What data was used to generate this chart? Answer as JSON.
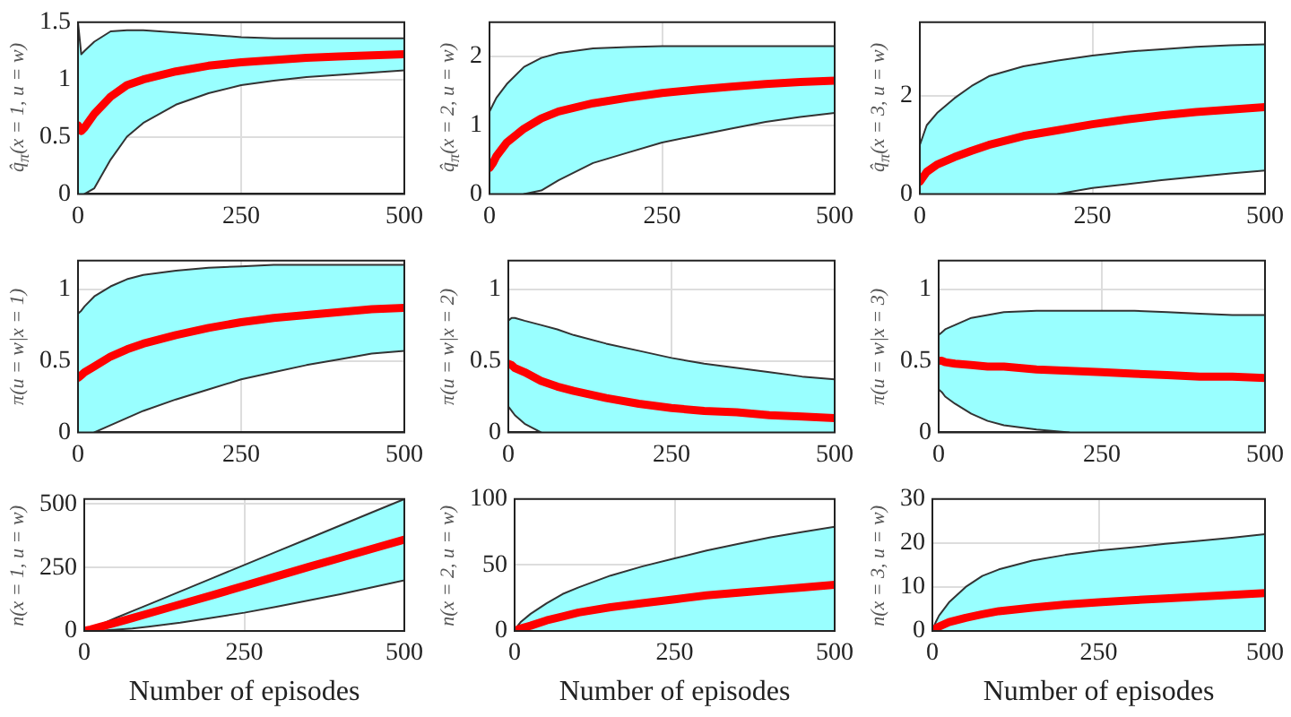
{
  "chart_data": [
    {
      "type": "line",
      "ylabel": "q̂$_{π}$(x = 1, u = w)",
      "x": [
        0,
        5,
        10,
        25,
        50,
        75,
        100,
        150,
        200,
        250,
        300,
        350,
        400,
        450,
        500
      ],
      "xlim": [
        0,
        500
      ],
      "xticks": [
        0,
        250,
        500
      ],
      "ylim": [
        0,
        1.5
      ],
      "yticks": [
        0,
        0.5,
        1,
        1.5
      ],
      "grid": true,
      "legend": false,
      "marker": "none",
      "line_style": "solid",
      "series": [
        {
          "color": "#ff0000",
          "values": [
            0.6,
            0.55,
            0.58,
            0.7,
            0.85,
            0.95,
            1.0,
            1.07,
            1.12,
            1.15,
            1.17,
            1.19,
            1.2,
            1.21,
            1.22
          ],
          "lower": [
            0,
            0,
            0,
            0.05,
            0.3,
            0.5,
            0.62,
            0.78,
            0.88,
            0.95,
            0.99,
            1.02,
            1.04,
            1.06,
            1.08
          ],
          "upper": [
            1.5,
            1.22,
            1.25,
            1.33,
            1.42,
            1.43,
            1.43,
            1.41,
            1.39,
            1.37,
            1.36,
            1.36,
            1.36,
            1.36,
            1.36
          ]
        },
        {
          "color": "#333333",
          "values": [
            1.5,
            1.22,
            1.25,
            1.33,
            1.42,
            1.43,
            1.43,
            1.41,
            1.39,
            1.37,
            1.36,
            1.36,
            1.36,
            1.36,
            1.36
          ]
        },
        {
          "color": "#333333",
          "values": [
            null,
            null,
            0,
            0.05,
            0.3,
            0.5,
            0.62,
            0.78,
            0.88,
            0.95,
            0.99,
            1.02,
            1.04,
            1.06,
            1.08
          ]
        }
      ]
    },
    {
      "type": "line",
      "ylabel": "q̂$_{π}$(x = 2, u = w)",
      "x": [
        0,
        5,
        10,
        25,
        50,
        75,
        100,
        150,
        200,
        250,
        300,
        350,
        400,
        450,
        500
      ],
      "xlim": [
        0,
        500
      ],
      "xticks": [
        0,
        250,
        500
      ],
      "ylim": [
        0,
        2.5
      ],
      "yticks": [
        0,
        1,
        2
      ],
      "grid": true,
      "legend": false,
      "marker": "none",
      "line_style": "solid",
      "series": [
        {
          "color": "#ff0000",
          "values": [
            0.38,
            0.45,
            0.55,
            0.75,
            0.95,
            1.1,
            1.2,
            1.32,
            1.4,
            1.47,
            1.52,
            1.56,
            1.6,
            1.63,
            1.65
          ],
          "lower": [
            0,
            0,
            0,
            0,
            0,
            0.05,
            0.2,
            0.45,
            0.6,
            0.75,
            0.85,
            0.95,
            1.05,
            1.12,
            1.18
          ],
          "upper": [
            1.2,
            1.3,
            1.4,
            1.6,
            1.85,
            1.98,
            2.05,
            2.12,
            2.14,
            2.15,
            2.15,
            2.15,
            2.15,
            2.15,
            2.15
          ]
        },
        {
          "color": "#333333",
          "values": [
            1.2,
            1.3,
            1.4,
            1.6,
            1.85,
            1.98,
            2.05,
            2.12,
            2.14,
            2.15,
            2.15,
            2.15,
            2.15,
            2.15,
            2.15
          ]
        },
        {
          "color": "#333333",
          "values": [
            null,
            null,
            null,
            null,
            0,
            0.05,
            0.2,
            0.45,
            0.6,
            0.75,
            0.85,
            0.95,
            1.05,
            1.12,
            1.18
          ]
        }
      ]
    },
    {
      "type": "line",
      "ylabel": "q̂$_{π}$(x = 3, u = w)",
      "x": [
        0,
        5,
        10,
        25,
        50,
        75,
        100,
        150,
        200,
        250,
        300,
        350,
        400,
        450,
        500
      ],
      "xlim": [
        0,
        500
      ],
      "xticks": [
        0,
        250,
        500
      ],
      "ylim": [
        0,
        3.5
      ],
      "yticks": [
        0,
        2
      ],
      "grid": true,
      "legend": false,
      "marker": "none",
      "line_style": "solid",
      "series": [
        {
          "color": "#ff0000",
          "values": [
            0.25,
            0.35,
            0.45,
            0.6,
            0.75,
            0.88,
            1.0,
            1.18,
            1.3,
            1.42,
            1.52,
            1.6,
            1.67,
            1.72,
            1.77
          ],
          "lower": [
            0,
            0,
            0,
            0,
            0,
            0,
            0,
            0,
            0,
            0.12,
            0.2,
            0.28,
            0.35,
            0.42,
            0.48
          ],
          "upper": [
            1.0,
            1.2,
            1.4,
            1.65,
            1.95,
            2.2,
            2.4,
            2.6,
            2.72,
            2.82,
            2.9,
            2.95,
            3.0,
            3.03,
            3.05
          ]
        },
        {
          "color": "#333333",
          "values": [
            1.0,
            1.2,
            1.4,
            1.65,
            1.95,
            2.2,
            2.4,
            2.6,
            2.72,
            2.82,
            2.9,
            2.95,
            3.0,
            3.03,
            3.05
          ]
        },
        {
          "color": "#333333",
          "values": [
            null,
            null,
            null,
            null,
            null,
            null,
            null,
            null,
            0,
            0.12,
            0.2,
            0.28,
            0.35,
            0.42,
            0.48
          ]
        }
      ]
    },
    {
      "type": "line",
      "ylabel": "π(u = w|x = 1)",
      "x": [
        0,
        5,
        10,
        25,
        50,
        75,
        100,
        150,
        200,
        250,
        300,
        350,
        400,
        450,
        500
      ],
      "xlim": [
        0,
        500
      ],
      "xticks": [
        0,
        250,
        500
      ],
      "ylim": [
        0,
        1.2
      ],
      "yticks": [
        0,
        0.5,
        1
      ],
      "grid": true,
      "legend": false,
      "marker": "none",
      "line_style": "solid",
      "series": [
        {
          "color": "#ff0000",
          "values": [
            0.38,
            0.4,
            0.42,
            0.46,
            0.53,
            0.58,
            0.62,
            0.68,
            0.73,
            0.77,
            0.8,
            0.82,
            0.84,
            0.86,
            0.87
          ],
          "lower": [
            0,
            0,
            0,
            0,
            0.05,
            0.1,
            0.15,
            0.23,
            0.3,
            0.37,
            0.42,
            0.47,
            0.51,
            0.55,
            0.57
          ],
          "upper": [
            0.83,
            0.85,
            0.88,
            0.95,
            1.02,
            1.07,
            1.1,
            1.13,
            1.15,
            1.16,
            1.17,
            1.17,
            1.17,
            1.17,
            1.17
          ]
        },
        {
          "color": "#333333",
          "values": [
            0.83,
            0.85,
            0.88,
            0.95,
            1.02,
            1.07,
            1.1,
            1.13,
            1.15,
            1.16,
            1.17,
            1.17,
            1.17,
            1.17,
            1.17
          ]
        },
        {
          "color": "#333333",
          "values": [
            null,
            null,
            null,
            0,
            0.05,
            0.1,
            0.15,
            0.23,
            0.3,
            0.37,
            0.42,
            0.47,
            0.51,
            0.55,
            0.57
          ]
        }
      ]
    },
    {
      "type": "line",
      "ylabel": "π(u = w|x = 2)",
      "x": [
        0,
        5,
        10,
        25,
        50,
        75,
        100,
        150,
        200,
        250,
        300,
        350,
        400,
        450,
        500
      ],
      "xlim": [
        0,
        500
      ],
      "xticks": [
        0,
        250,
        500
      ],
      "ylim": [
        0,
        1.2
      ],
      "yticks": [
        0,
        0.5,
        1
      ],
      "grid": true,
      "legend": false,
      "marker": "none",
      "line_style": "solid",
      "series": [
        {
          "color": "#ff0000",
          "values": [
            0.48,
            0.47,
            0.45,
            0.42,
            0.36,
            0.32,
            0.29,
            0.24,
            0.2,
            0.17,
            0.15,
            0.14,
            0.12,
            0.11,
            0.1
          ],
          "lower": [
            0.18,
            0.15,
            0.12,
            0.06,
            0,
            0,
            0,
            0,
            0,
            0,
            0,
            0,
            0,
            0,
            0
          ],
          "upper": [
            0.78,
            0.8,
            0.8,
            0.78,
            0.75,
            0.72,
            0.68,
            0.62,
            0.57,
            0.52,
            0.48,
            0.45,
            0.42,
            0.39,
            0.37
          ]
        },
        {
          "color": "#333333",
          "values": [
            0.78,
            0.8,
            0.8,
            0.78,
            0.75,
            0.72,
            0.68,
            0.62,
            0.57,
            0.52,
            0.48,
            0.45,
            0.42,
            0.39,
            0.37
          ]
        },
        {
          "color": "#333333",
          "values": [
            0.18,
            0.15,
            0.12,
            0.06,
            0,
            null,
            null,
            null,
            null,
            null,
            null,
            null,
            null,
            null,
            null
          ]
        }
      ]
    },
    {
      "type": "line",
      "ylabel": "π(u = w|x = 3)",
      "x": [
        0,
        5,
        10,
        25,
        50,
        75,
        100,
        150,
        200,
        250,
        300,
        350,
        400,
        450,
        500
      ],
      "xlim": [
        0,
        500
      ],
      "xticks": [
        0,
        250,
        500
      ],
      "ylim": [
        0,
        1.2
      ],
      "yticks": [
        0,
        0.5,
        1
      ],
      "grid": true,
      "legend": false,
      "marker": "none",
      "line_style": "solid",
      "series": [
        {
          "color": "#ff0000",
          "values": [
            0.5,
            0.5,
            0.49,
            0.48,
            0.47,
            0.46,
            0.46,
            0.44,
            0.43,
            0.42,
            0.41,
            0.4,
            0.39,
            0.39,
            0.38
          ],
          "lower": [
            0.3,
            0.28,
            0.25,
            0.2,
            0.13,
            0.08,
            0.05,
            0.02,
            0,
            0,
            0,
            0,
            0,
            0,
            0
          ],
          "upper": [
            0.68,
            0.7,
            0.72,
            0.75,
            0.8,
            0.82,
            0.84,
            0.85,
            0.85,
            0.85,
            0.85,
            0.84,
            0.83,
            0.82,
            0.82
          ]
        },
        {
          "color": "#333333",
          "values": [
            0.68,
            0.7,
            0.72,
            0.75,
            0.8,
            0.82,
            0.84,
            0.85,
            0.85,
            0.85,
            0.85,
            0.84,
            0.83,
            0.82,
            0.82
          ]
        },
        {
          "color": "#333333",
          "values": [
            0.3,
            0.28,
            0.25,
            0.2,
            0.13,
            0.08,
            0.05,
            0.02,
            0,
            null,
            null,
            null,
            null,
            null,
            null
          ]
        }
      ]
    },
    {
      "type": "line",
      "ylabel": "n(x = 1, u = w)",
      "xlabel": "Number of episodes",
      "x": [
        0,
        5,
        10,
        25,
        50,
        75,
        100,
        150,
        200,
        250,
        300,
        350,
        400,
        450,
        500
      ],
      "xlim": [
        0,
        500
      ],
      "xticks": [
        0,
        250,
        500
      ],
      "ylim": [
        0,
        520
      ],
      "yticks": [
        0,
        250,
        500
      ],
      "grid": true,
      "legend": false,
      "marker": "none",
      "line_style": "solid",
      "series": [
        {
          "color": "#ff0000",
          "values": [
            0,
            3,
            6,
            16,
            33,
            51,
            69,
            105,
            141,
            178,
            215,
            252,
            288,
            324,
            360
          ],
          "lower": [
            0,
            0,
            0,
            1,
            5,
            10,
            17,
            33,
            52,
            72,
            95,
            120,
            145,
            172,
            200
          ],
          "upper": [
            0,
            5,
            10,
            25,
            52,
            78,
            104,
            156,
            208,
            260,
            312,
            364,
            416,
            468,
            520
          ]
        },
        {
          "color": "#333333",
          "values": [
            0,
            5,
            10,
            25,
            52,
            78,
            104,
            156,
            208,
            260,
            312,
            364,
            416,
            468,
            520
          ]
        },
        {
          "color": "#333333",
          "values": [
            0,
            0,
            0,
            1,
            5,
            10,
            17,
            33,
            52,
            72,
            95,
            120,
            145,
            172,
            200
          ]
        }
      ]
    },
    {
      "type": "line",
      "ylabel": "n(x = 2, u = w)",
      "xlabel": "Number of episodes",
      "x": [
        0,
        5,
        10,
        25,
        50,
        75,
        100,
        150,
        200,
        250,
        300,
        350,
        400,
        450,
        500
      ],
      "xlim": [
        0,
        500
      ],
      "xticks": [
        0,
        250,
        500
      ],
      "ylim": [
        0,
        100
      ],
      "yticks": [
        0,
        50,
        100
      ],
      "grid": true,
      "legend": false,
      "marker": "none",
      "line_style": "solid",
      "series": [
        {
          "color": "#ff0000",
          "values": [
            0,
            1,
            2,
            4,
            8,
            11,
            14,
            18,
            21,
            24,
            27,
            29,
            31,
            33,
            35
          ],
          "lower": [
            0,
            0,
            0,
            0,
            0,
            0,
            0,
            0,
            0,
            0,
            0,
            0,
            0,
            0,
            0
          ],
          "upper": [
            0,
            4,
            7,
            13,
            21,
            28,
            33,
            42,
            49,
            55,
            61,
            66,
            71,
            75,
            79
          ]
        },
        {
          "color": "#333333",
          "values": [
            0,
            4,
            7,
            13,
            21,
            28,
            33,
            42,
            49,
            55,
            61,
            66,
            71,
            75,
            79
          ]
        }
      ]
    },
    {
      "type": "line",
      "ylabel": "n(x = 3, u = w)",
      "xlabel": "Number of episodes",
      "x": [
        0,
        5,
        10,
        25,
        50,
        75,
        100,
        150,
        200,
        250,
        300,
        350,
        400,
        450,
        500
      ],
      "xlim": [
        0,
        500
      ],
      "xticks": [
        0,
        250,
        500
      ],
      "ylim": [
        0,
        30
      ],
      "yticks": [
        0,
        10,
        20,
        30
      ],
      "grid": true,
      "legend": false,
      "marker": "none",
      "line_style": "solid",
      "series": [
        {
          "color": "#ff0000",
          "values": [
            0,
            0.5,
            1,
            2,
            3,
            3.8,
            4.5,
            5.3,
            6,
            6.5,
            7,
            7.4,
            7.8,
            8.2,
            8.6
          ],
          "lower": [
            0,
            0,
            0,
            0,
            0,
            0,
            0,
            0,
            0,
            0,
            0,
            0,
            0,
            0,
            0
          ],
          "upper": [
            0,
            2,
            3.5,
            6.5,
            10,
            12.5,
            14,
            16,
            17.3,
            18.3,
            19,
            19.8,
            20.5,
            21.2,
            22
          ]
        },
        {
          "color": "#333333",
          "values": [
            0,
            2,
            3.5,
            6.5,
            10,
            12.5,
            14,
            16,
            17.3,
            18.3,
            19,
            19.8,
            20.5,
            21.2,
            22
          ]
        }
      ]
    }
  ]
}
